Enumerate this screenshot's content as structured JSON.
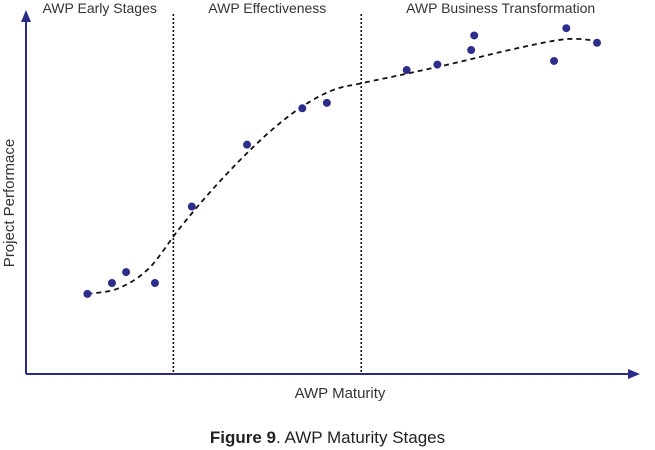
{
  "chart_data": {
    "type": "scatter",
    "xlabel": "AWP Maturity",
    "ylabel": "Project Performace",
    "xlim": [
      0,
      100
    ],
    "ylim": [
      0,
      100
    ],
    "stages": [
      {
        "label": "AWP Early Stages",
        "x_start": 0,
        "x_end": 24
      },
      {
        "label": "AWP Effectiveness",
        "x_start": 24,
        "x_end": 54.6
      },
      {
        "label": "AWP Business Transformation",
        "x_start": 54.6,
        "x_end": 100
      }
    ],
    "stage_boundaries": [
      24,
      54.6
    ],
    "series": [
      {
        "points": [
          {
            "x": 10,
            "y": 22
          },
          {
            "x": 14,
            "y": 25
          },
          {
            "x": 16.3,
            "y": 28
          },
          {
            "x": 21,
            "y": 25
          },
          {
            "x": 27,
            "y": 46
          },
          {
            "x": 36,
            "y": 63
          },
          {
            "x": 45,
            "y": 73
          },
          {
            "x": 49,
            "y": 74.5
          },
          {
            "x": 62,
            "y": 83.5
          },
          {
            "x": 67,
            "y": 85
          },
          {
            "x": 72.5,
            "y": 89
          },
          {
            "x": 73,
            "y": 93
          },
          {
            "x": 86,
            "y": 86
          },
          {
            "x": 88,
            "y": 95
          },
          {
            "x": 93,
            "y": 91
          }
        ]
      }
    ],
    "trend": [
      {
        "x": 10,
        "y": 22
      },
      {
        "x": 15,
        "y": 23.5
      },
      {
        "x": 20,
        "y": 29
      },
      {
        "x": 25,
        "y": 40
      },
      {
        "x": 30,
        "y": 50
      },
      {
        "x": 35,
        "y": 59
      },
      {
        "x": 40,
        "y": 67
      },
      {
        "x": 45,
        "y": 73.5
      },
      {
        "x": 50,
        "y": 78
      },
      {
        "x": 55,
        "y": 80
      },
      {
        "x": 62,
        "y": 82.5
      },
      {
        "x": 70,
        "y": 85.5
      },
      {
        "x": 80,
        "y": 89.5
      },
      {
        "x": 88,
        "y": 92
      },
      {
        "x": 93,
        "y": 91.5
      }
    ],
    "colors": {
      "axis": "#2b2b8a",
      "points": "#2d2d8c",
      "trend": "#111111",
      "divider": "#111111"
    },
    "grid": false,
    "legend": "none"
  },
  "caption": {
    "label": "Figure 9",
    "text": ". AWP Maturity Stages"
  }
}
